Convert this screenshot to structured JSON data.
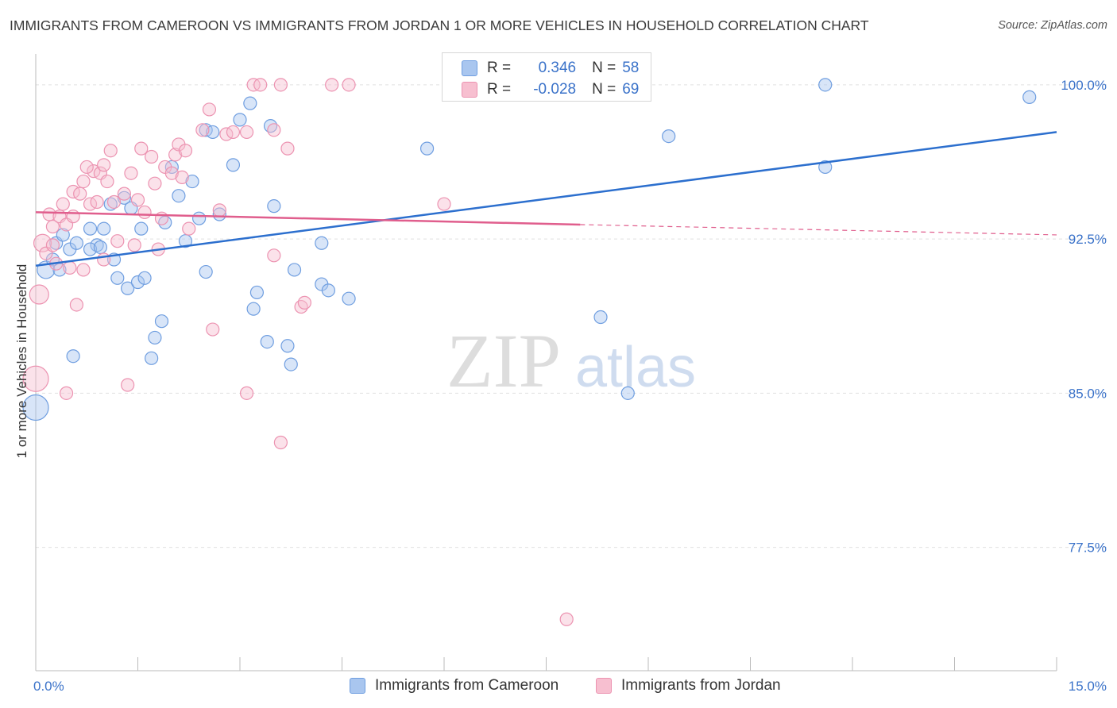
{
  "title": "IMMIGRANTS FROM CAMEROON VS IMMIGRANTS FROM JORDAN 1 OR MORE VEHICLES IN HOUSEHOLD CORRELATION CHART",
  "source": "Source: ZipAtlas.com",
  "watermark": {
    "zip": "ZIP",
    "atlas": "atlas"
  },
  "legend": {
    "r_label": "R =",
    "n_label": "N =",
    "rows": [
      {
        "r": "0.346",
        "n": "58",
        "color": "#a9c6ef",
        "border": "#6f9ee0"
      },
      {
        "r": "-0.028",
        "n": "69",
        "color": "#f7bfd0",
        "border": "#ec93b1"
      }
    ]
  },
  "bottom_legend": [
    {
      "label": "Immigrants from Cameroon",
      "color": "#a9c6ef",
      "border": "#6f9ee0"
    },
    {
      "label": "Immigrants from Jordan",
      "color": "#f7bfd0",
      "border": "#ec93b1"
    }
  ],
  "chart_data": {
    "type": "scatter",
    "title": "IMMIGRANTS FROM CAMEROON VS IMMIGRANTS FROM JORDAN 1 OR MORE VEHICLES IN HOUSEHOLD CORRELATION CHART",
    "xlabel": "",
    "ylabel": "1 or more Vehicles in Household",
    "xlim": [
      0,
      15
    ],
    "ylim": [
      71.5,
      101.5
    ],
    "x_tick_labels": [
      "0.0%",
      "15.0%"
    ],
    "y_ticks": [
      77.5,
      85.0,
      92.5,
      100.0
    ],
    "y_tick_labels": [
      "77.5%",
      "85.0%",
      "92.5%",
      "100.0%"
    ],
    "grid": true,
    "series": [
      {
        "name": "Immigrants from Cameroon",
        "color": "#a9c6ef",
        "stroke": "#6f9ee0",
        "line_color": "#2c6fce",
        "trend": {
          "x": [
            0.0,
            15.0
          ],
          "y": [
            91.2,
            97.7
          ]
        },
        "points": [
          [
            0.15,
            91.0,
            22
          ],
          [
            0.25,
            91.5,
            16
          ],
          [
            0.35,
            91.0,
            16
          ],
          [
            0.3,
            92.3,
            16
          ],
          [
            0.4,
            92.7,
            16
          ],
          [
            0.5,
            92.0,
            16
          ],
          [
            0.6,
            92.3,
            16
          ],
          [
            0.55,
            86.8,
            16
          ],
          [
            0.8,
            93.0,
            16
          ],
          [
            0.9,
            92.2,
            16
          ],
          [
            0.8,
            92.0,
            16
          ],
          [
            1.0,
            93.0,
            16
          ],
          [
            1.1,
            94.2,
            16
          ],
          [
            1.15,
            91.5,
            16
          ],
          [
            1.2,
            90.6,
            16
          ],
          [
            1.3,
            94.5,
            16
          ],
          [
            1.35,
            90.1,
            16
          ],
          [
            1.5,
            90.4,
            16
          ],
          [
            1.55,
            93.0,
            16
          ],
          [
            1.6,
            90.6,
            16
          ],
          [
            1.7,
            86.7,
            16
          ],
          [
            1.75,
            87.7,
            16
          ],
          [
            1.85,
            88.5,
            16
          ],
          [
            1.9,
            93.3,
            16
          ],
          [
            2.0,
            96.0,
            16
          ],
          [
            2.1,
            94.6,
            16
          ],
          [
            2.2,
            92.4,
            16
          ],
          [
            2.3,
            95.3,
            16
          ],
          [
            2.4,
            93.5,
            16
          ],
          [
            2.5,
            97.8,
            16
          ],
          [
            2.6,
            97.7,
            16
          ],
          [
            2.5,
            90.9,
            16
          ],
          [
            2.7,
            93.7,
            16
          ],
          [
            2.9,
            96.1,
            16
          ],
          [
            3.0,
            98.3,
            16
          ],
          [
            3.15,
            99.1,
            16
          ],
          [
            3.2,
            89.1,
            16
          ],
          [
            3.25,
            89.9,
            16
          ],
          [
            3.4,
            87.5,
            16
          ],
          [
            3.45,
            98.0,
            16
          ],
          [
            3.5,
            94.1,
            16
          ],
          [
            3.7,
            87.3,
            16
          ],
          [
            3.75,
            86.4,
            16
          ],
          [
            3.8,
            91.0,
            16
          ],
          [
            4.2,
            92.3,
            16
          ],
          [
            4.2,
            90.3,
            16
          ],
          [
            4.3,
            90.0,
            16
          ],
          [
            4.6,
            89.6,
            16
          ],
          [
            5.75,
            96.9,
            16
          ],
          [
            8.3,
            88.7,
            16
          ],
          [
            8.7,
            85.0,
            16
          ],
          [
            9.3,
            97.5,
            16
          ],
          [
            11.6,
            96.0,
            16
          ],
          [
            11.6,
            100.0,
            16
          ],
          [
            14.6,
            99.4,
            16
          ],
          [
            0.0,
            84.3,
            32
          ],
          [
            1.4,
            94.0,
            16
          ],
          [
            0.95,
            92.1,
            16
          ]
        ]
      },
      {
        "name": "Immigrants from Jordan",
        "color": "#f7bfd0",
        "stroke": "#ec93b1",
        "line_color": "#e05e8d",
        "trend": {
          "x": [
            0.0,
            8.0
          ],
          "y": [
            93.8,
            93.2
          ]
        },
        "trend_dash": {
          "x": [
            8.0,
            15.0
          ],
          "y": [
            93.2,
            92.7
          ]
        },
        "points": [
          [
            0.0,
            85.7,
            32
          ],
          [
            0.05,
            89.8,
            24
          ],
          [
            0.1,
            92.3,
            22
          ],
          [
            0.15,
            91.8,
            16
          ],
          [
            0.2,
            93.7,
            16
          ],
          [
            0.25,
            93.1,
            16
          ],
          [
            0.3,
            91.3,
            16
          ],
          [
            0.35,
            93.6,
            16
          ],
          [
            0.4,
            94.2,
            16
          ],
          [
            0.45,
            93.2,
            16
          ],
          [
            0.5,
            91.1,
            16
          ],
          [
            0.55,
            93.6,
            16
          ],
          [
            0.55,
            94.8,
            16
          ],
          [
            0.65,
            94.7,
            16
          ],
          [
            0.7,
            95.3,
            16
          ],
          [
            0.8,
            94.2,
            16
          ],
          [
            0.85,
            95.8,
            16
          ],
          [
            0.9,
            94.3,
            16
          ],
          [
            0.95,
            95.7,
            16
          ],
          [
            1.0,
            96.1,
            16
          ],
          [
            1.05,
            95.3,
            16
          ],
          [
            1.1,
            96.8,
            16
          ],
          [
            1.15,
            94.3,
            16
          ],
          [
            1.2,
            92.4,
            16
          ],
          [
            1.3,
            94.7,
            16
          ],
          [
            1.4,
            95.7,
            16
          ],
          [
            1.45,
            92.2,
            16
          ],
          [
            1.5,
            94.4,
            16
          ],
          [
            1.55,
            96.9,
            16
          ],
          [
            1.6,
            93.8,
            16
          ],
          [
            1.7,
            96.5,
            16
          ],
          [
            1.75,
            95.2,
            16
          ],
          [
            1.8,
            92.0,
            16
          ],
          [
            1.9,
            96.0,
            16
          ],
          [
            2.0,
            95.7,
            16
          ],
          [
            2.05,
            96.6,
            16
          ],
          [
            2.1,
            97.1,
            16
          ],
          [
            2.15,
            95.5,
            16
          ],
          [
            2.2,
            96.8,
            16
          ],
          [
            2.25,
            93.0,
            16
          ],
          [
            2.45,
            97.8,
            16
          ],
          [
            2.55,
            98.8,
            16
          ],
          [
            2.6,
            88.1,
            16
          ],
          [
            2.7,
            93.9,
            16
          ],
          [
            2.8,
            97.6,
            16
          ],
          [
            2.9,
            97.7,
            16
          ],
          [
            3.1,
            97.7,
            16
          ],
          [
            3.2,
            100.0,
            16
          ],
          [
            3.3,
            100.0,
            16
          ],
          [
            3.5,
            97.8,
            16
          ],
          [
            3.5,
            91.7,
            16
          ],
          [
            3.6,
            100.0,
            16
          ],
          [
            3.7,
            96.9,
            16
          ],
          [
            3.9,
            89.2,
            16
          ],
          [
            3.95,
            89.4,
            16
          ],
          [
            4.35,
            100.0,
            16
          ],
          [
            4.6,
            100.0,
            16
          ],
          [
            6.0,
            94.2,
            16
          ],
          [
            7.8,
            74.0,
            16
          ],
          [
            0.45,
            85.0,
            16
          ],
          [
            0.6,
            89.3,
            16
          ],
          [
            1.35,
            85.4,
            16
          ],
          [
            3.1,
            85.0,
            16
          ],
          [
            3.6,
            82.6,
            16
          ],
          [
            0.7,
            91.0,
            16
          ],
          [
            0.25,
            92.2,
            16
          ],
          [
            1.0,
            91.5,
            16
          ],
          [
            0.75,
            96.0,
            16
          ],
          [
            1.85,
            93.5,
            16
          ]
        ]
      }
    ]
  }
}
